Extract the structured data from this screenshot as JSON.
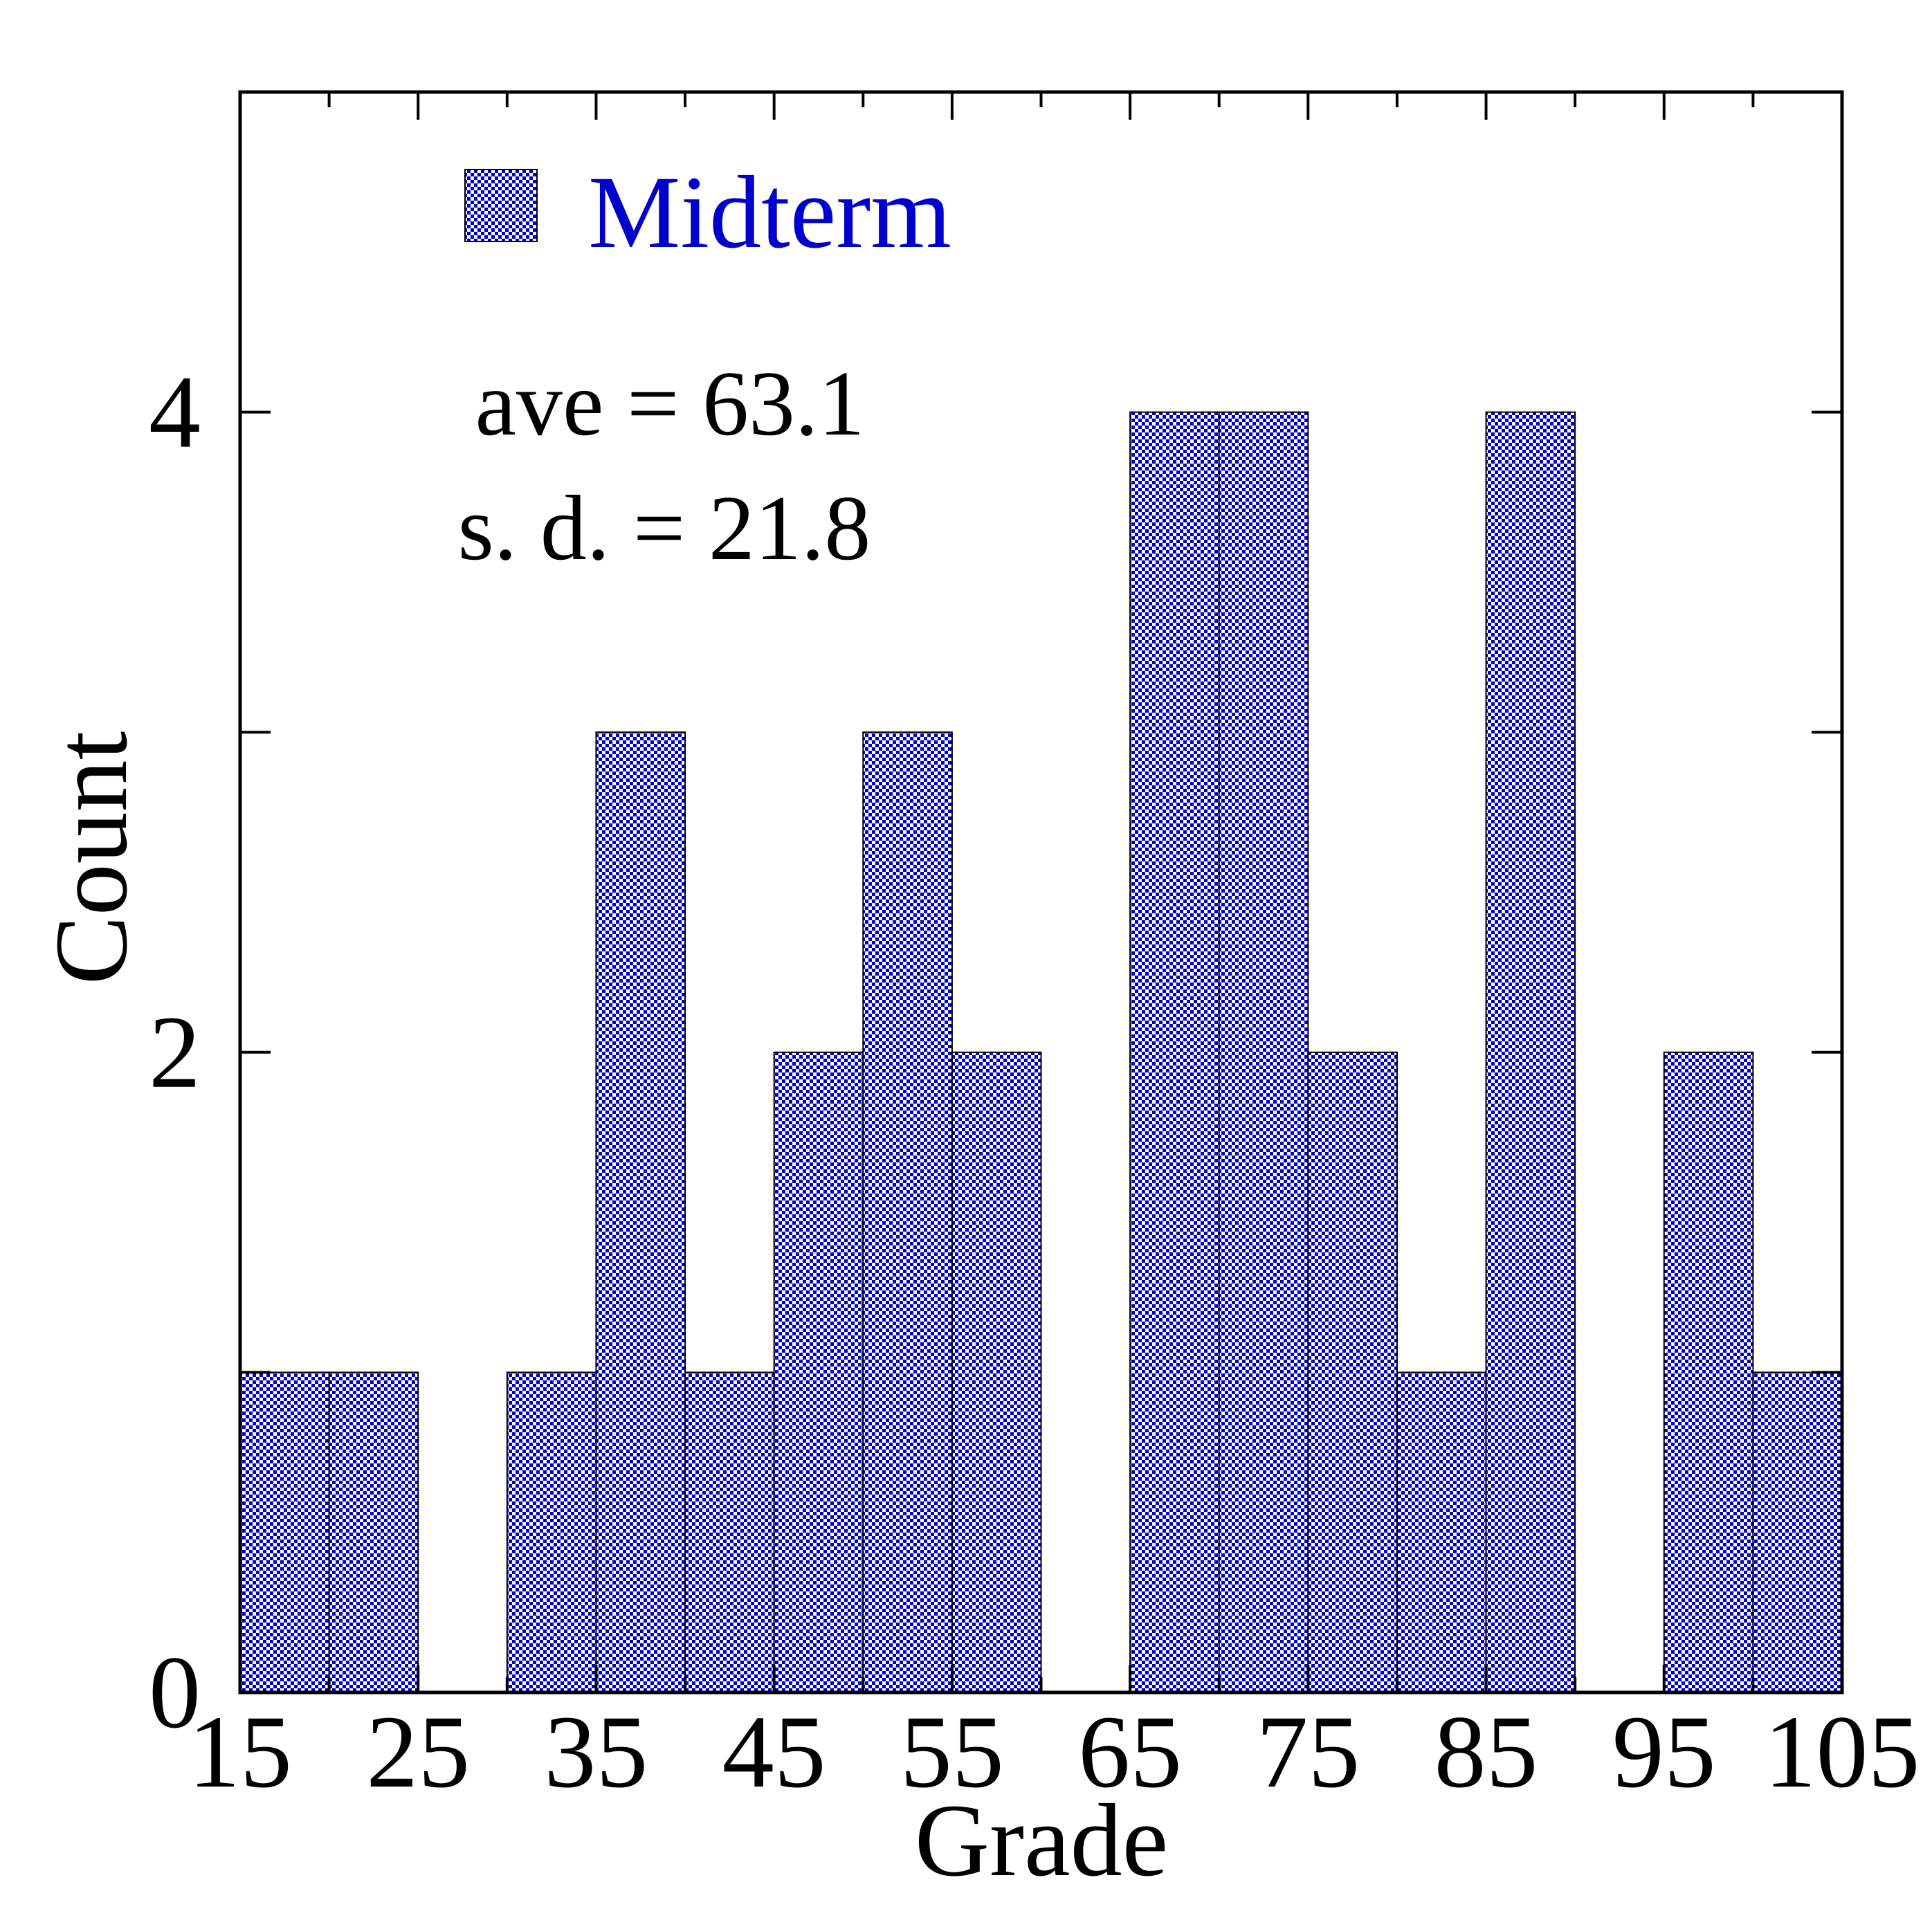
{
  "chart_data": {
    "type": "bar",
    "xlabel": "Grade",
    "ylabel": "Count",
    "xlim": [
      15,
      105
    ],
    "ylim": [
      0,
      5
    ],
    "bin_width": 5,
    "x_ticks": [
      15,
      25,
      35,
      45,
      55,
      65,
      75,
      85,
      95,
      105
    ],
    "y_ticks": [
      0,
      2,
      4
    ],
    "bins": [
      {
        "start": 15,
        "count": 1
      },
      {
        "start": 20,
        "count": 1
      },
      {
        "start": 25,
        "count": 0
      },
      {
        "start": 30,
        "count": 1
      },
      {
        "start": 35,
        "count": 3
      },
      {
        "start": 40,
        "count": 1
      },
      {
        "start": 45,
        "count": 2
      },
      {
        "start": 50,
        "count": 3
      },
      {
        "start": 55,
        "count": 2
      },
      {
        "start": 60,
        "count": 0
      },
      {
        "start": 65,
        "count": 4
      },
      {
        "start": 70,
        "count": 4
      },
      {
        "start": 75,
        "count": 2
      },
      {
        "start": 80,
        "count": 1
      },
      {
        "start": 85,
        "count": 4
      },
      {
        "start": 90,
        "count": 0
      },
      {
        "start": 95,
        "count": 2
      },
      {
        "start": 100,
        "count": 1
      }
    ],
    "series": [
      {
        "name": "Midterm"
      }
    ],
    "legend_position": "top-left",
    "annotations": {
      "average": "ave = 63.1",
      "std_dev": "s. d. = 21.8"
    },
    "grid": false,
    "colors": {
      "bar": "#0000cc",
      "legend_text": "#0000cc"
    }
  }
}
